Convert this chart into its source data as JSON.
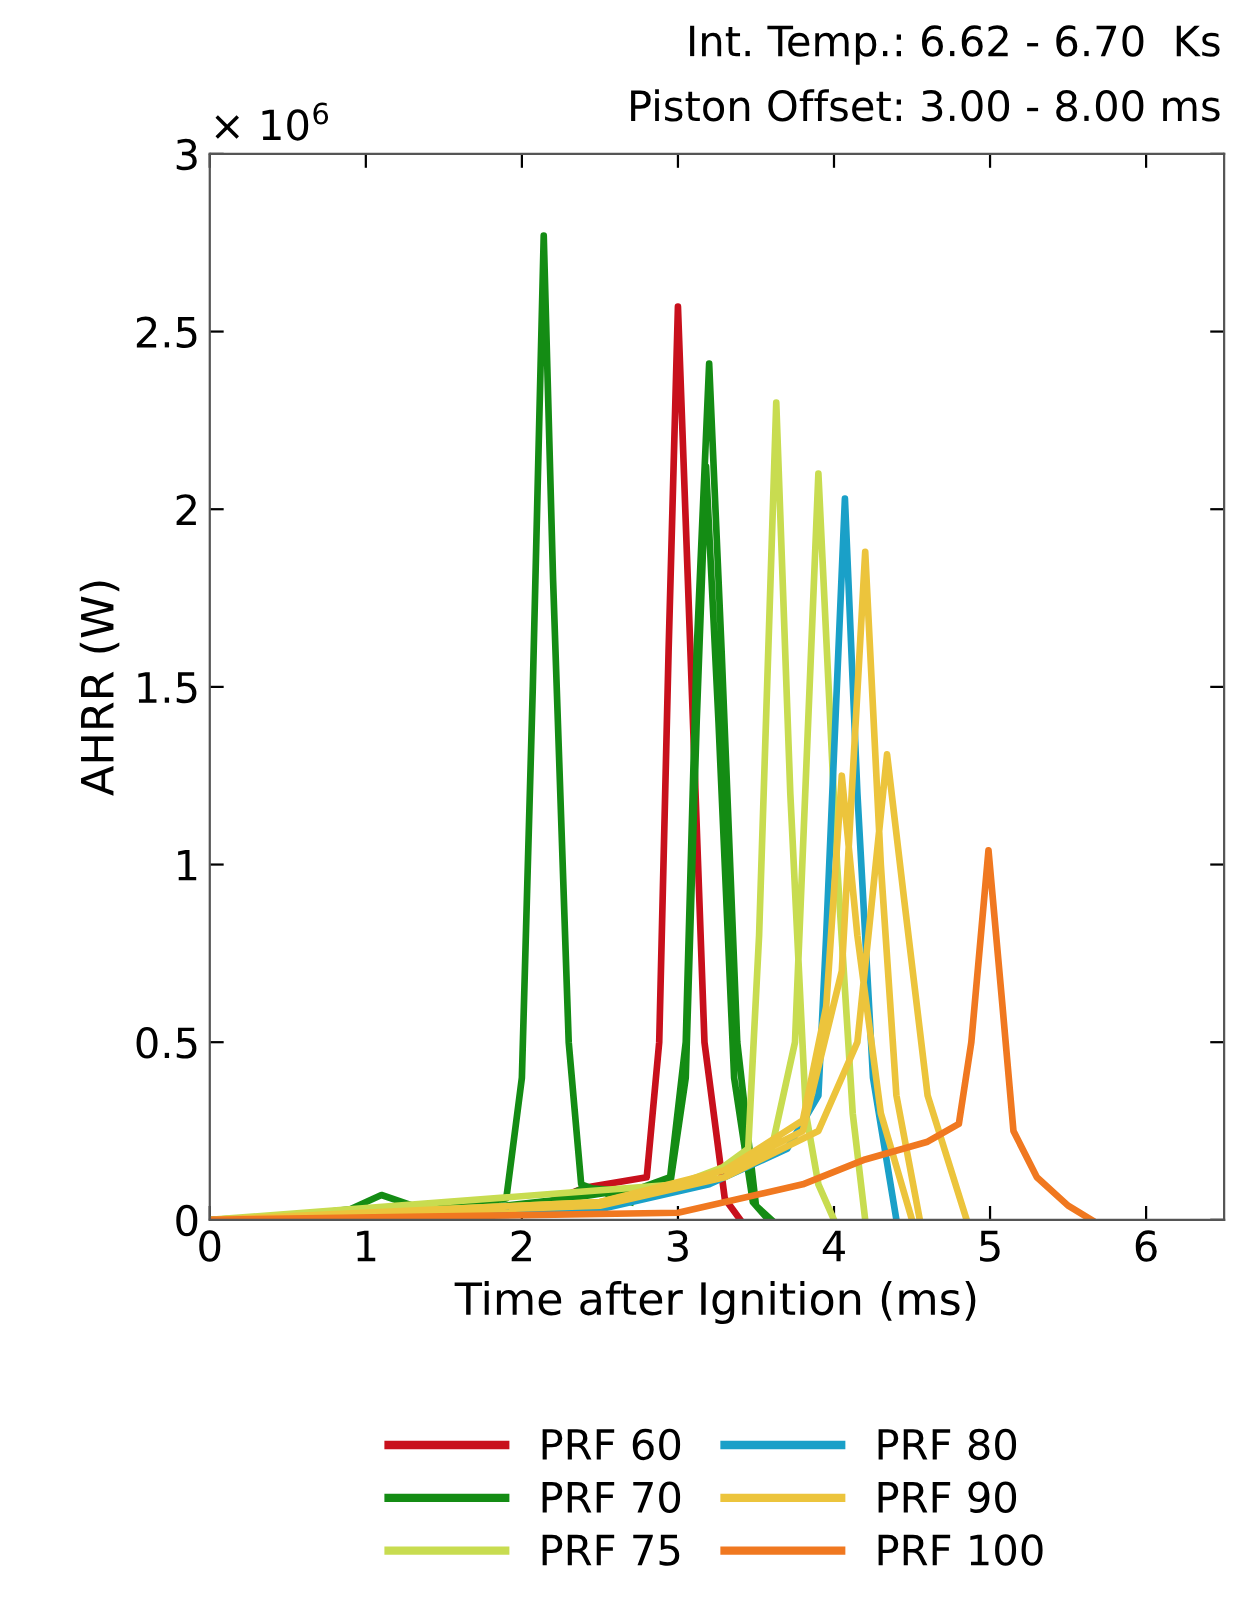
{
  "chart_data": {
    "type": "line",
    "title": "Int. Temp.: 6.62 - 6.70  Ks",
    "subtitle": "Piston Offset: 3.00 - 8.00 ms",
    "xlabel": "Time after Ignition (ms)",
    "ylabel": "AHRR (W)",
    "annotations": [
      "× 10$^{6}$"
    ],
    "xlim": [
      0,
      6.5
    ],
    "xticks": [
      0,
      1,
      2,
      3,
      4,
      5,
      6
    ],
    "ylim": [
      0,
      3
    ],
    "yticks": [
      0,
      0.5,
      1,
      1.5,
      2,
      2.5,
      3
    ],
    "grid": false,
    "legend": "bottom",
    "marker": "none",
    "line_style": "solid",
    "series": [
      {
        "name": "PRF 60",
        "color": "#c8101c",
        "x": [
          0,
          2.0,
          2.4,
          2.8,
          2.88,
          2.94,
          3.0,
          3.08,
          3.17,
          3.3,
          3.4
        ],
        "values": [
          0,
          0.02,
          0.09,
          0.12,
          0.5,
          1.6,
          2.57,
          1.6,
          0.5,
          0.06,
          0
        ]
      },
      {
        "name": "PRF 70",
        "color": "#148c14",
        "x": [
          0,
          0.5,
          0.9,
          1.1,
          1.3,
          1.6,
          1.9,
          2.0,
          2.07,
          2.14,
          2.2,
          2.3,
          2.38,
          2.5,
          2.7,
          null,
          0,
          1.5,
          2.2,
          2.4,
          2.7,
          2.95,
          3.05,
          3.12,
          3.2,
          3.28,
          3.38,
          3.5,
          3.6,
          null,
          0,
          1.5,
          2.3,
          2.6,
          2.95,
          3.05,
          3.12,
          3.18,
          3.26,
          3.36,
          3.48,
          3.58
        ],
        "values": [
          0,
          0.01,
          0.03,
          0.07,
          0.04,
          0.04,
          0.06,
          0.4,
          1.5,
          2.77,
          1.8,
          0.5,
          0.1,
          0.08,
          0.05,
          null,
          0,
          0.02,
          0.05,
          0.09,
          0.08,
          0.12,
          0.5,
          1.6,
          2.41,
          1.6,
          0.5,
          0.04,
          0,
          null,
          0,
          0.02,
          0.06,
          0.08,
          0.1,
          0.4,
          1.4,
          2.12,
          1.4,
          0.4,
          0.05,
          0
        ]
      },
      {
        "name": "PRF 75",
        "color": "#c8dc50",
        "x": [
          0,
          2.5,
          3.2,
          3.45,
          3.52,
          3.63,
          3.72,
          3.82,
          3.9,
          4.0,
          null,
          0,
          3.0,
          3.6,
          3.75,
          3.9,
          4.02,
          4.12,
          4.2
        ],
        "values": [
          0,
          0.05,
          0.12,
          0.2,
          0.8,
          2.3,
          1.2,
          0.3,
          0.1,
          0,
          null,
          0,
          0.1,
          0.2,
          0.5,
          2.1,
          1.0,
          0.3,
          0
        ]
      },
      {
        "name": "PRF 80",
        "color": "#1aa0c8",
        "x": [
          0,
          2.5,
          3.2,
          3.7,
          3.9,
          3.95,
          4.07,
          4.15,
          4.25,
          4.4
        ],
        "values": [
          0,
          0.03,
          0.1,
          0.2,
          0.35,
          0.8,
          2.03,
          1.2,
          0.4,
          0
        ]
      },
      {
        "name": "PRF 90",
        "color": "#ecc43c",
        "x": [
          0,
          2.5,
          3.3,
          3.8,
          4.05,
          4.2,
          4.3,
          4.4,
          4.55,
          null,
          0,
          2.5,
          3.3,
          3.9,
          4.15,
          4.34,
          4.45,
          4.6,
          4.85,
          null,
          0,
          2.5,
          3.3,
          3.8,
          3.95,
          4.05,
          4.15,
          4.3,
          4.5
        ],
        "values": [
          0,
          0.05,
          0.14,
          0.25,
          0.7,
          1.88,
          1.0,
          0.35,
          0,
          null,
          0,
          0.04,
          0.12,
          0.25,
          0.5,
          1.31,
          0.9,
          0.35,
          0,
          null,
          0,
          0.05,
          0.14,
          0.28,
          0.6,
          1.25,
          0.8,
          0.3,
          0
        ]
      },
      {
        "name": "PRF 100",
        "color": "#f07820",
        "x": [
          0,
          3.0,
          3.8,
          4.2,
          4.6,
          4.8,
          4.88,
          4.99,
          5.08,
          5.15,
          5.3,
          5.5,
          5.65
        ],
        "values": [
          0,
          0.02,
          0.1,
          0.17,
          0.22,
          0.27,
          0.5,
          1.04,
          0.6,
          0.25,
          0.12,
          0.04,
          0
        ]
      }
    ]
  }
}
